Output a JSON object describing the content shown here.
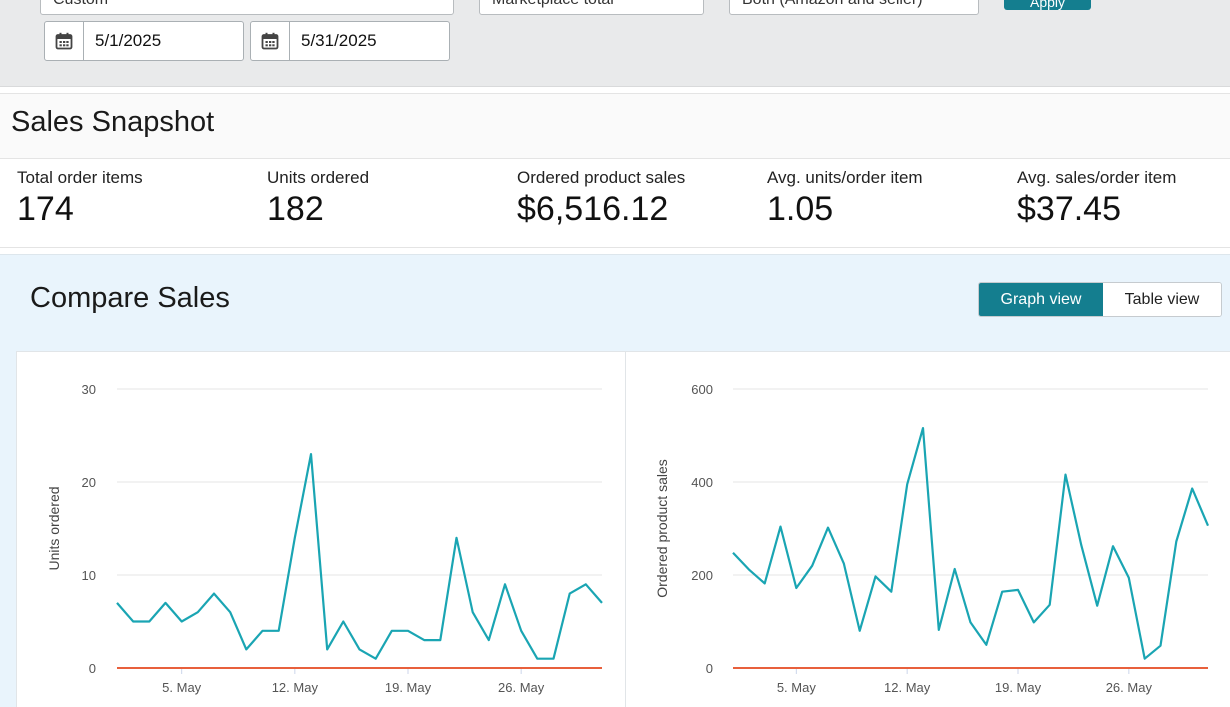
{
  "filters": {
    "date_range_select": "Custom",
    "marketplace_select": "Marketplace total",
    "fulfillment_select": "Both (Amazon and seller)",
    "apply_label": "Apply",
    "start_date": "5/1/2025",
    "end_date": "5/31/2025"
  },
  "snapshot": {
    "title": "Sales Snapshot",
    "metrics": [
      {
        "label": "Total order items",
        "value": "174"
      },
      {
        "label": "Units ordered",
        "value": "182"
      },
      {
        "label": "Ordered product sales",
        "value": "$6,516.12"
      },
      {
        "label": "Avg. units/order item",
        "value": "1.05"
      },
      {
        "label": "Avg. sales/order item",
        "value": "$37.45"
      }
    ]
  },
  "compare": {
    "title": "Compare Sales",
    "graph_view_label": "Graph view",
    "table_view_label": "Table view"
  },
  "colors": {
    "series_line": "#1aa5b3",
    "baseline": "#e8603c",
    "accent": "#147e8f"
  },
  "chart_data": [
    {
      "type": "line",
      "title": "",
      "xlabel": "",
      "ylabel": "Units ordered",
      "ylim": [
        0,
        30
      ],
      "yticks": [
        0,
        10,
        20,
        30
      ],
      "x_tick_labels": [
        "5. May",
        "12. May",
        "19. May",
        "26. May"
      ],
      "x_tick_days": [
        5,
        12,
        19,
        26
      ],
      "x": [
        1,
        2,
        3,
        4,
        5,
        6,
        7,
        8,
        9,
        10,
        11,
        12,
        13,
        14,
        15,
        16,
        17,
        18,
        19,
        20,
        21,
        22,
        23,
        24,
        25,
        26,
        27,
        28,
        29,
        30,
        31
      ],
      "series": [
        {
          "values": [
            7,
            5,
            5,
            7,
            5,
            6,
            8,
            6,
            2,
            4,
            4,
            14,
            23,
            2,
            5,
            2,
            1,
            4,
            4,
            3,
            3,
            14,
            6,
            3,
            9,
            4,
            1,
            1,
            8,
            9,
            7
          ]
        },
        {
          "values": [
            0,
            0,
            0,
            0,
            0,
            0,
            0,
            0,
            0,
            0,
            0,
            0,
            0,
            0,
            0,
            0,
            0,
            0,
            0,
            0,
            0,
            0,
            0,
            0,
            0,
            0,
            0,
            0,
            0,
            0,
            0
          ]
        }
      ],
      "grid": true
    },
    {
      "type": "line",
      "title": "",
      "xlabel": "",
      "ylabel": "Ordered product sales",
      "ylim": [
        0,
        600
      ],
      "yticks": [
        0,
        200,
        400,
        600
      ],
      "x_tick_labels": [
        "5. May",
        "12. May",
        "19. May",
        "26. May"
      ],
      "x_tick_days": [
        5,
        12,
        19,
        26
      ],
      "x": [
        1,
        2,
        3,
        4,
        5,
        6,
        7,
        8,
        9,
        10,
        11,
        12,
        13,
        14,
        15,
        16,
        17,
        18,
        19,
        20,
        21,
        22,
        23,
        24,
        25,
        26,
        27,
        28,
        29,
        30,
        31
      ],
      "series": [
        {
          "values": [
            248,
            212,
            182,
            304,
            172,
            220,
            302,
            225,
            80,
            197,
            164,
            395,
            516,
            82,
            213,
            98,
            50,
            164,
            168,
            98,
            136,
            416,
            264,
            134,
            262,
            194,
            20,
            48,
            272,
            386,
            306
          ]
        },
        {
          "values": [
            0,
            0,
            0,
            0,
            0,
            0,
            0,
            0,
            0,
            0,
            0,
            0,
            0,
            0,
            0,
            0,
            0,
            0,
            0,
            0,
            0,
            0,
            0,
            0,
            0,
            0,
            0,
            0,
            0,
            0,
            0
          ]
        }
      ],
      "grid": true
    }
  ]
}
